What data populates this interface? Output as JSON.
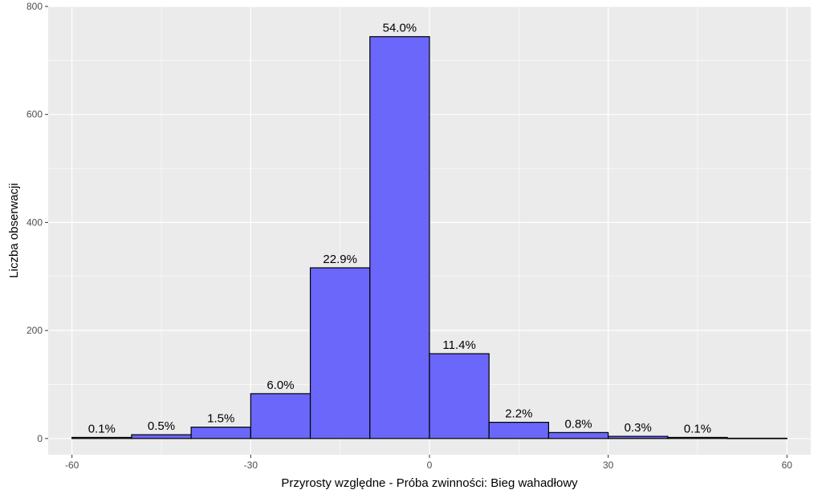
{
  "chart_data": {
    "type": "bar",
    "title": "",
    "xlabel": "Przyrosty względne - Próba zwinności: Bieg wahadłowy",
    "ylabel": "Liczba obserwacji",
    "xlim": [
      -64,
      64
    ],
    "ylim": [
      -30,
      800
    ],
    "x_ticks": [
      -60,
      -30,
      0,
      30,
      60
    ],
    "y_ticks": [
      0,
      200,
      400,
      600,
      800
    ],
    "x_tick_labels": [
      "-60",
      "-30",
      "0",
      "30",
      "60"
    ],
    "y_tick_labels": [
      "0",
      "200",
      "400",
      "600",
      "800"
    ],
    "grid": true,
    "bins": [
      {
        "start": -60,
        "end": -50,
        "count": 2,
        "label": "0.1%"
      },
      {
        "start": -50,
        "end": -40,
        "count": 7,
        "label": "0.5%"
      },
      {
        "start": -40,
        "end": -30,
        "count": 21,
        "label": "1.5%"
      },
      {
        "start": -30,
        "end": -20,
        "count": 83,
        "label": "6.0%"
      },
      {
        "start": -20,
        "end": -10,
        "count": 316,
        "label": "22.9%"
      },
      {
        "start": -10,
        "end": 0,
        "count": 744,
        "label": "54.0%"
      },
      {
        "start": 0,
        "end": 10,
        "count": 157,
        "label": "11.4%"
      },
      {
        "start": 10,
        "end": 20,
        "count": 30,
        "label": "2.2%"
      },
      {
        "start": 20,
        "end": 30,
        "count": 11,
        "label": "0.8%"
      },
      {
        "start": 30,
        "end": 40,
        "count": 4,
        "label": "0.3%"
      },
      {
        "start": 40,
        "end": 50,
        "count": 2,
        "label": "0.1%"
      },
      {
        "start": 50,
        "end": 60,
        "count": 0.5,
        "label": ""
      }
    ],
    "colors": {
      "bar_fill": "#6a67fa",
      "bar_stroke": "#000000",
      "panel_bg": "#ebebeb",
      "grid": "#ffffff"
    }
  }
}
